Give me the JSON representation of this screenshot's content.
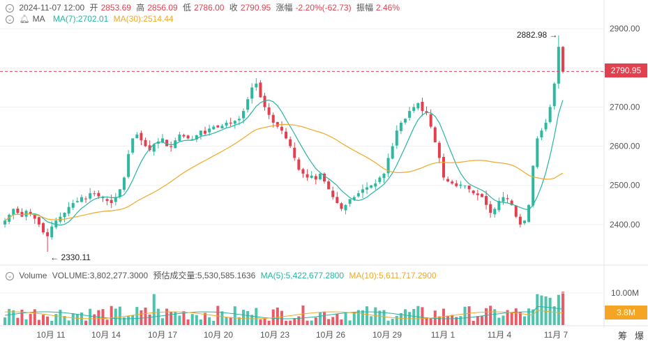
{
  "header": {
    "datetime": "2024-11-07 12:00",
    "open_label": "开",
    "open": "2853.69",
    "high_label": "高",
    "high": "2856.09",
    "low_label": "低",
    "low": "2786.00",
    "close_label": "收",
    "close": "2790.95",
    "change_label": "涨幅",
    "change": "-2.20%(-62.73)",
    "amplitude_label": "振幅",
    "amplitude": "2.46%"
  },
  "ma_row": {
    "label": "MA",
    "ma7": "MA(7):2702.01",
    "ma30": "MA(30):2514.44"
  },
  "vol_row": {
    "label": "Volume",
    "volume": "VOLUME:3,802,277.3000",
    "est_label": "预估成交量:",
    "est": "5,530,585.1636",
    "ma5": "MA(5):5,422,677.2800",
    "ma10": "MA(10):5,611,717.2900"
  },
  "price_tag": "2790.95",
  "vol_tag": "3.8M",
  "tools": {
    "a": "筹",
    "b": "爆"
  },
  "chart_data": {
    "type": "candlestick",
    "title": "",
    "y_ticks": [
      2900,
      2800,
      2700,
      2600,
      2500,
      2400
    ],
    "y_tick_labels": [
      "2900.00",
      "2800.00",
      "2700.00",
      "2600.00",
      "2500.00",
      "2400.00"
    ],
    "ylim": [
      2330,
      2900
    ],
    "x_tick_labels": [
      "10月 11",
      "10月 14",
      "10月 17",
      "10月 20",
      "10月 23",
      "10月 26",
      "10月 29",
      "11月 1",
      "11月 4",
      "11月 7"
    ],
    "high_annotation": "2882.98",
    "low_annotation": "2330.11",
    "current_price": 2790.95,
    "volume_axis_label": "10.00M",
    "close_series": [
      2410,
      2425,
      2440,
      2430,
      2420,
      2435,
      2428,
      2415,
      2400,
      2380,
      2370,
      2395,
      2410,
      2420,
      2430,
      2445,
      2455,
      2460,
      2470,
      2465,
      2480,
      2478,
      2472,
      2468,
      2460,
      2455,
      2470,
      2490,
      2520,
      2580,
      2620,
      2630,
      2615,
      2600,
      2590,
      2605,
      2612,
      2620,
      2600,
      2598,
      2615,
      2630,
      2625,
      2620,
      2618,
      2628,
      2640,
      2632,
      2645,
      2650,
      2648,
      2652,
      2660,
      2658,
      2665,
      2670,
      2690,
      2720,
      2750,
      2760,
      2725,
      2700,
      2680,
      2660,
      2650,
      2640,
      2620,
      2600,
      2570,
      2540,
      2530,
      2520,
      2525,
      2515,
      2530,
      2510,
      2490,
      2470,
      2455,
      2440,
      2450,
      2465,
      2470,
      2480,
      2490,
      2495,
      2500,
      2505,
      2520,
      2530,
      2570,
      2600,
      2640,
      2660,
      2670,
      2690,
      2700,
      2710,
      2690,
      2685,
      2650,
      2610,
      2570,
      2520,
      2510,
      2505,
      2498,
      2502,
      2500,
      2490,
      2480,
      2475,
      2470,
      2450,
      2430,
      2440,
      2460,
      2470,
      2465,
      2450,
      2420,
      2400,
      2410,
      2450,
      2550,
      2620,
      2640,
      2660,
      2700,
      2760,
      2853,
      2791
    ],
    "ma7": {
      "name": "MA(7)",
      "last": 2702.01
    },
    "ma30": {
      "name": "MA(30)",
      "last": 2514.44
    }
  }
}
